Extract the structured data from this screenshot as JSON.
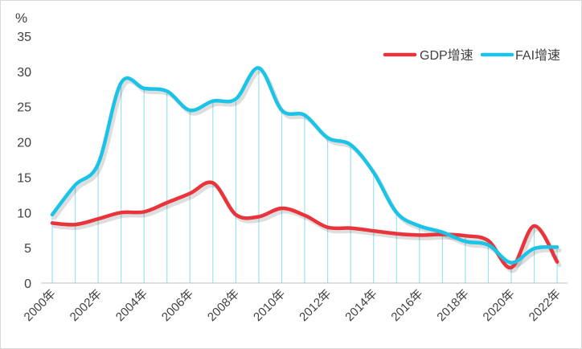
{
  "chart_data": {
    "type": "line",
    "title": "",
    "xlabel": "",
    "ylabel": "%",
    "ylim": [
      0,
      35
    ],
    "yticks": [
      0,
      5,
      10,
      15,
      20,
      25,
      30,
      35
    ],
    "x": [
      "2000年",
      "2001年",
      "2002年",
      "2003年",
      "2004年",
      "2005年",
      "2006年",
      "2007年",
      "2008年",
      "2009年",
      "2010年",
      "2011年",
      "2012年",
      "2013年",
      "2014年",
      "2015年",
      "2016年",
      "2017年",
      "2018年",
      "2019年",
      "2020年",
      "2021年",
      "2022年"
    ],
    "xtick_labels": [
      "2000年",
      "2002年",
      "2004年",
      "2006年",
      "2008年",
      "2010年",
      "2012年",
      "2014年",
      "2016年",
      "2018年",
      "2020年",
      "2022年"
    ],
    "series": [
      {
        "name": "GDP增速",
        "color": "#e8343a",
        "values": [
          8.5,
          8.3,
          9.1,
          10.0,
          10.1,
          11.4,
          12.7,
          14.2,
          9.7,
          9.4,
          10.6,
          9.6,
          7.9,
          7.8,
          7.4,
          7.0,
          6.8,
          6.9,
          6.7,
          6.0,
          2.2,
          8.1,
          3.0
        ]
      },
      {
        "name": "FAI增速",
        "color": "#1bc4e6",
        "values": [
          9.7,
          13.9,
          16.9,
          28.4,
          27.6,
          27.2,
          24.5,
          25.8,
          26.1,
          30.5,
          24.5,
          23.8,
          20.6,
          19.6,
          15.7,
          10.0,
          8.1,
          7.2,
          5.9,
          5.4,
          2.9,
          4.9,
          5.1
        ]
      }
    ],
    "drop_lines": true,
    "legend_position": "top-right"
  }
}
